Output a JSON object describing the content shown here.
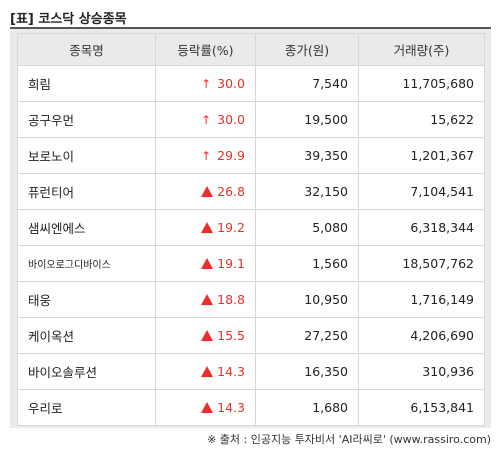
{
  "title": "[표] 코스닥 상승종목",
  "headers": [
    "종목명",
    "등락률(%)",
    "종가(원)",
    "거래량(주)"
  ],
  "rows": [
    {
      "name": "희림",
      "rate": "30.0",
      "marker": "up-arrow",
      "price": "7,540",
      "volume": "11,705,680"
    },
    {
      "name": "공구우먼",
      "rate": "30.0",
      "marker": "up-arrow",
      "price": "19,500",
      "volume": "15,622"
    },
    {
      "name": "보로노이",
      "rate": "29.9",
      "marker": "up-arrow",
      "price": "39,350",
      "volume": "1,201,367"
    },
    {
      "name": "퓨런티어",
      "rate": "26.8",
      "marker": "triangle",
      "price": "32,150",
      "volume": "7,104,541"
    },
    {
      "name": "샘씨엔에스",
      "rate": "19.2",
      "marker": "triangle",
      "price": "5,080",
      "volume": "6,318,344"
    },
    {
      "name": "바이오로그디바이스",
      "rate": "19.1",
      "marker": "triangle",
      "price": "1,560",
      "volume": "18,507,762"
    },
    {
      "name": "태웅",
      "rate": "18.8",
      "marker": "triangle",
      "price": "10,950",
      "volume": "1,716,149"
    },
    {
      "name": "케이옥션",
      "rate": "15.5",
      "marker": "triangle",
      "price": "27,250",
      "volume": "4,206,690"
    },
    {
      "name": "바이오솔루션",
      "rate": "14.3",
      "marker": "triangle",
      "price": "16,350",
      "volume": "310,936"
    },
    {
      "name": "우리로",
      "rate": "14.3",
      "marker": "triangle",
      "price": "1,680",
      "volume": "6,153,841"
    }
  ],
  "source": "※ 출처 : 인공지능 투자비서 'AI라씨로' (www.rassiro.com)",
  "colors": {
    "up": "#e8312f",
    "header_bg": "#eaeaea"
  }
}
